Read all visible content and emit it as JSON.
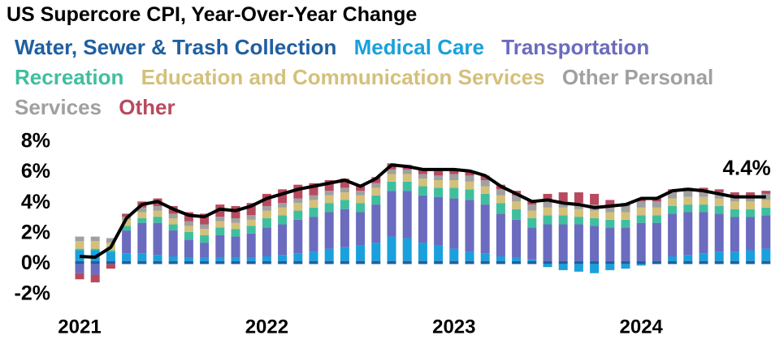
{
  "chart_data": {
    "type": "stacked_bar_line",
    "title": "US Supercore CPI, Year-Over-Year Change",
    "categories": [
      "2021",
      null,
      null,
      null,
      null,
      null,
      null,
      null,
      null,
      null,
      null,
      null,
      "2022",
      null,
      null,
      null,
      null,
      null,
      null,
      null,
      null,
      null,
      null,
      null,
      "2023",
      null,
      null,
      null,
      null,
      null,
      null,
      null,
      null,
      null,
      null,
      null,
      "2024",
      null,
      null,
      null,
      null,
      null,
      null,
      null,
      null
    ],
    "series": [
      {
        "name": "Water, Sewer & Trash Collection",
        "color": "#1f5fa0",
        "values": [
          0.2,
          0.2,
          0.2,
          0.2,
          0.2,
          0.2,
          0.2,
          0.2,
          0.2,
          0.2,
          0.2,
          0.2,
          0.2,
          0.2,
          0.2,
          0.2,
          0.2,
          0.2,
          0.2,
          0.2,
          0.2,
          0.2,
          0.2,
          0.2,
          0.2,
          0.2,
          0.2,
          0.2,
          0.2,
          0.2,
          0.2,
          0.2,
          0.2,
          0.2,
          0.2,
          0.2,
          0.2,
          0.2,
          0.2,
          0.2,
          0.2,
          0.2,
          0.2,
          0.2,
          0.2
        ]
      },
      {
        "name": "Medical Care",
        "color": "#1aa0dc",
        "values": [
          0.7,
          0.7,
          0.6,
          0.5,
          0.5,
          0.4,
          0.3,
          0.2,
          0.2,
          0.2,
          0.2,
          0.2,
          0.3,
          0.4,
          0.5,
          0.6,
          0.8,
          0.9,
          1.0,
          1.2,
          1.6,
          1.5,
          1.2,
          1.0,
          0.8,
          0.6,
          0.5,
          0.3,
          0.2,
          0.1,
          -0.2,
          -0.4,
          -0.5,
          -0.6,
          -0.4,
          -0.3,
          -0.1,
          0.0,
          0.3,
          0.4,
          0.5,
          0.6,
          0.6,
          0.7,
          0.8
        ]
      },
      {
        "name": "Transportation",
        "color": "#6b6bbf",
        "values": [
          -0.6,
          -0.7,
          0.0,
          1.5,
          2.0,
          2.1,
          1.7,
          1.2,
          1.0,
          1.5,
          1.4,
          1.6,
          1.9,
          2.0,
          2.2,
          2.3,
          2.4,
          2.5,
          2.2,
          2.5,
          3.0,
          3.1,
          3.1,
          3.2,
          3.3,
          3.4,
          3.2,
          2.8,
          2.5,
          2.1,
          2.4,
          2.4,
          2.4,
          2.3,
          2.2,
          2.2,
          2.5,
          2.5,
          2.8,
          2.8,
          2.7,
          2.5,
          2.3,
          2.2,
          2.2
        ]
      },
      {
        "name": "Recreation",
        "color": "#3fbf9f",
        "values": [
          0.1,
          0.1,
          0.1,
          0.3,
          0.3,
          0.4,
          0.4,
          0.5,
          0.5,
          0.5,
          0.5,
          0.5,
          0.6,
          0.6,
          0.6,
          0.6,
          0.6,
          0.6,
          0.6,
          0.6,
          0.6,
          0.6,
          0.6,
          0.6,
          0.7,
          0.7,
          0.7,
          0.7,
          0.7,
          0.6,
          0.6,
          0.6,
          0.5,
          0.5,
          0.5,
          0.5,
          0.5,
          0.5,
          0.5,
          0.5,
          0.5,
          0.5,
          0.5,
          0.5,
          0.5
        ]
      },
      {
        "name": "Education and Communication Services",
        "color": "#d4c07a",
        "values": [
          0.5,
          0.5,
          0.5,
          0.4,
          0.4,
          0.4,
          0.4,
          0.4,
          0.4,
          0.4,
          0.4,
          0.4,
          0.5,
          0.5,
          0.5,
          0.5,
          0.5,
          0.5,
          0.5,
          0.5,
          0.5,
          0.5,
          0.5,
          0.5,
          0.5,
          0.5,
          0.5,
          0.5,
          0.5,
          0.5,
          0.5,
          0.5,
          0.5,
          0.5,
          0.5,
          0.5,
          0.5,
          0.5,
          0.5,
          0.5,
          0.5,
          0.5,
          0.5,
          0.5,
          0.5
        ]
      },
      {
        "name": "Other Personal Services",
        "color": "#a0a0a0",
        "values": [
          0.3,
          0.3,
          0.3,
          0.2,
          0.3,
          0.3,
          0.3,
          0.3,
          0.3,
          0.3,
          0.3,
          0.3,
          0.3,
          0.3,
          0.3,
          0.3,
          0.3,
          0.3,
          0.3,
          0.3,
          0.3,
          0.3,
          0.3,
          0.3,
          0.4,
          0.4,
          0.4,
          0.4,
          0.4,
          0.4,
          0.4,
          0.4,
          0.4,
          0.4,
          0.4,
          0.4,
          0.4,
          0.4,
          0.4,
          0.4,
          0.4,
          0.4,
          0.4,
          0.4,
          0.4
        ]
      },
      {
        "name": "Other",
        "color": "#b84a5f",
        "values": [
          -0.4,
          -0.5,
          -0.3,
          0.2,
          0.4,
          0.5,
          0.5,
          0.6,
          0.7,
          0.8,
          0.8,
          0.8,
          0.8,
          0.9,
          0.9,
          0.8,
          0.7,
          0.6,
          0.4,
          0.4,
          0.4,
          0.3,
          0.3,
          0.3,
          0.3,
          0.3,
          0.3,
          0.3,
          0.3,
          0.3,
          0.5,
          0.6,
          0.7,
          0.7,
          0.4,
          0.2,
          0.2,
          0.2,
          0.2,
          0.2,
          0.2,
          0.2,
          0.2,
          0.2,
          0.2
        ]
      }
    ],
    "line": {
      "color": "#000000",
      "values": [
        0.5,
        0.45,
        1.1,
        3.0,
        3.9,
        4.1,
        3.6,
        3.2,
        3.1,
        3.6,
        3.5,
        3.8,
        4.3,
        4.6,
        4.9,
        5.1,
        5.3,
        5.5,
        5.1,
        5.6,
        6.5,
        6.4,
        6.2,
        6.2,
        6.2,
        6.1,
        5.8,
        5.1,
        4.6,
        4.1,
        4.2,
        4.0,
        3.9,
        3.7,
        3.8,
        3.9,
        4.3,
        4.3,
        4.8,
        4.9,
        4.8,
        4.6,
        4.4,
        4.4,
        4.4
      ],
      "value_labels": [
        null,
        null,
        null,
        null,
        null,
        null,
        null,
        null,
        null,
        null,
        null,
        null,
        null,
        null,
        null,
        null,
        null,
        null,
        null,
        null,
        null,
        null,
        null,
        null,
        null,
        null,
        null,
        null,
        null,
        null,
        null,
        null,
        null,
        null,
        null,
        null,
        null,
        null,
        null,
        null,
        null,
        null,
        null,
        null,
        "4.4%"
      ]
    },
    "ylim": [
      -2,
      8
    ],
    "yticks": [
      {
        "value": -2,
        "label": "-2%"
      },
      {
        "value": 0,
        "label": "0%"
      },
      {
        "value": 2,
        "label": "2%"
      },
      {
        "value": 4,
        "label": "4%"
      },
      {
        "value": 6,
        "label": "6%"
      },
      {
        "value": 8,
        "label": "8%"
      }
    ],
    "grid": false
  }
}
